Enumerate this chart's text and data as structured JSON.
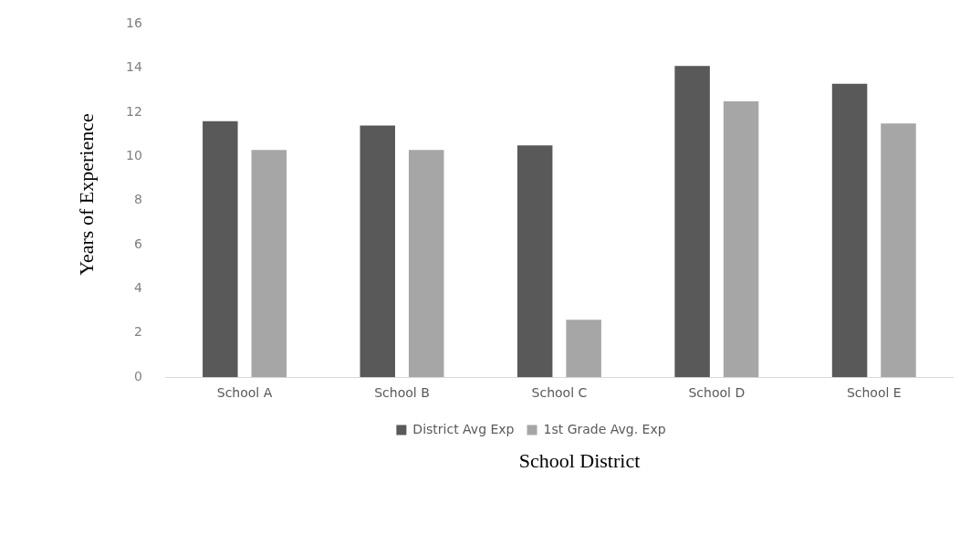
{
  "chart_data": {
    "type": "bar",
    "xlabel": "School District",
    "ylabel": "Years of Experience",
    "categories": [
      "School A",
      "School B",
      "School C",
      "School D",
      "School E"
    ],
    "series": [
      {
        "name": "District Avg Exp",
        "color": "#595959",
        "values": [
          11.6,
          11.4,
          10.5,
          14.1,
          13.3
        ]
      },
      {
        "name": "1st Grade Avg. Exp",
        "color": "#a6a6a6",
        "values": [
          10.3,
          10.3,
          2.6,
          12.5,
          11.5
        ]
      }
    ],
    "ylim": [
      0,
      16
    ],
    "yticks": [
      0,
      2,
      4,
      6,
      8,
      10,
      12,
      14,
      16
    ],
    "grid": false,
    "legend": "bottom"
  }
}
